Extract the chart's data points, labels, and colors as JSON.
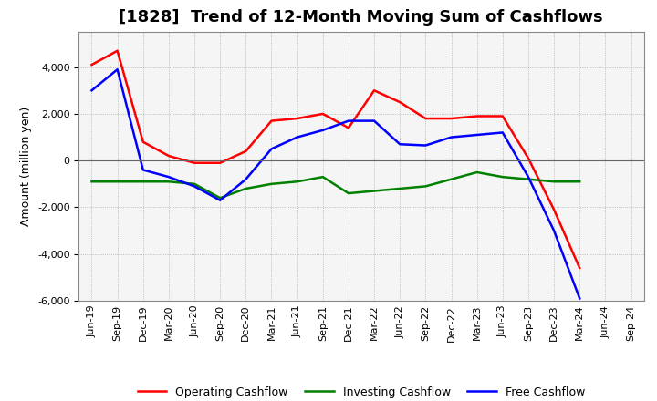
{
  "title": "[1828]  Trend of 12-Month Moving Sum of Cashflows",
  "ylabel": "Amount (million yen)",
  "xlabels": [
    "Jun-19",
    "Sep-19",
    "Dec-19",
    "Mar-20",
    "Jun-20",
    "Sep-20",
    "Dec-20",
    "Mar-21",
    "Jun-21",
    "Sep-21",
    "Dec-21",
    "Mar-22",
    "Jun-22",
    "Sep-22",
    "Dec-22",
    "Mar-23",
    "Jun-23",
    "Sep-23",
    "Dec-23",
    "Mar-24",
    "Jun-24",
    "Sep-24"
  ],
  "operating": [
    4100,
    4700,
    800,
    200,
    -100,
    -100,
    400,
    1700,
    1800,
    2000,
    1400,
    3000,
    2500,
    1800,
    1800,
    1900,
    1900,
    100,
    -2100,
    -4600,
    null,
    null
  ],
  "investing": [
    -900,
    -900,
    -900,
    -900,
    -1000,
    -1600,
    -1200,
    -1000,
    -900,
    -700,
    -1400,
    -1300,
    -1200,
    -1100,
    -800,
    -500,
    -700,
    -800,
    -900,
    -900,
    null,
    null
  ],
  "free": [
    3000,
    3900,
    -400,
    -700,
    -1100,
    -1700,
    -800,
    500,
    1000,
    1300,
    1700,
    1700,
    700,
    650,
    1000,
    1100,
    1200,
    -700,
    -3000,
    -5900,
    null,
    null
  ],
  "operating_color": "#FF0000",
  "investing_color": "#008000",
  "free_color": "#0000FF",
  "ylim": [
    -6000,
    5500
  ],
  "yticks": [
    -6000,
    -4000,
    -2000,
    0,
    2000,
    4000
  ],
  "bg_color": "#FFFFFF",
  "plot_bg_color": "#F5F5F5",
  "grid_color": "#AAAAAA",
  "title_fontsize": 13,
  "axis_fontsize": 9,
  "tick_fontsize": 8,
  "legend_fontsize": 9
}
